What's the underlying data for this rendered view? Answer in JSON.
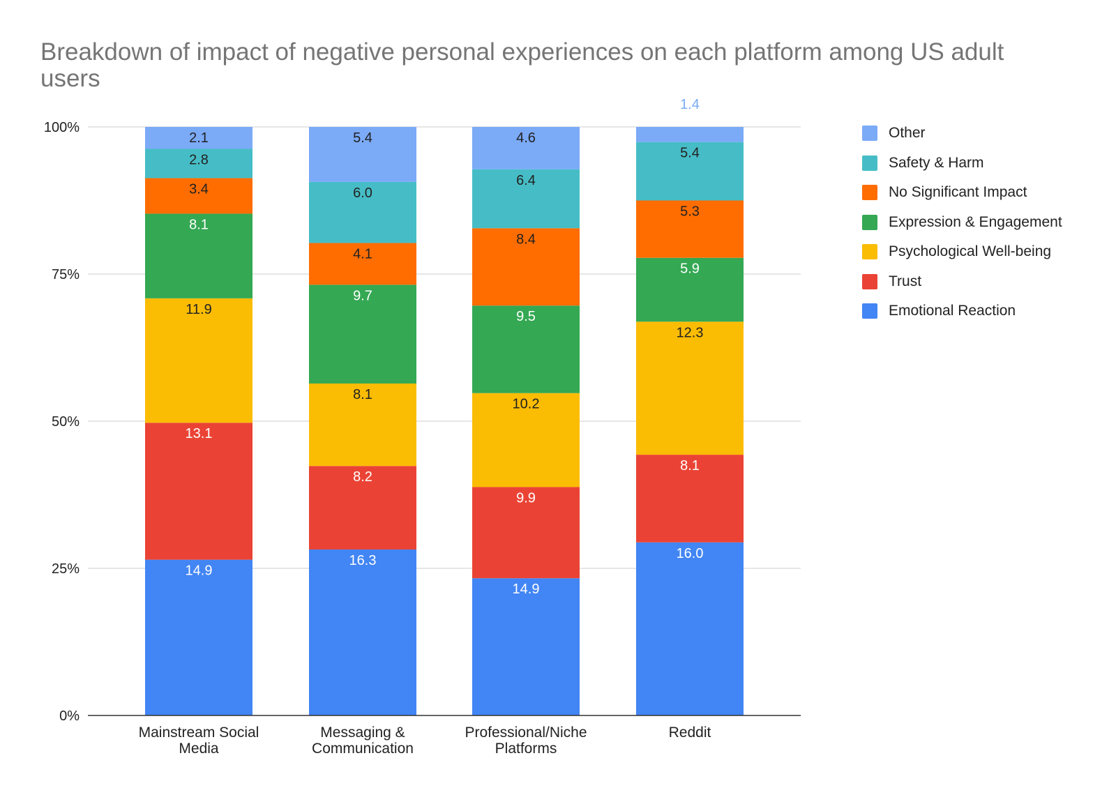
{
  "chart_data": {
    "type": "bar",
    "stacked": true,
    "normalized": true,
    "title": "Breakdown of impact of negative personal experiences on each platform among US adult users",
    "categories": [
      "Mainstream Social Media",
      "Messaging & Communication",
      "Professional/Niche Platforms",
      "Reddit"
    ],
    "y_ticks": [
      "0%",
      "25%",
      "50%",
      "75%",
      "100%"
    ],
    "ylim": [
      0,
      100
    ],
    "grid": true,
    "legend_position": "right",
    "series": [
      {
        "name": "Emotional Reaction",
        "color": "#4285f4",
        "label_color": "#ffffff",
        "values": [
          14.9,
          16.3,
          14.9,
          16.0
        ]
      },
      {
        "name": "Trust",
        "color": "#ea4335",
        "label_color": "#ffffff",
        "values": [
          13.1,
          8.2,
          9.9,
          8.1
        ]
      },
      {
        "name": "Psychological Well-being",
        "color": "#fbbc04",
        "label_color": "#222222",
        "values": [
          11.9,
          8.1,
          10.2,
          12.3
        ]
      },
      {
        "name": "Expression & Engagement",
        "color": "#34a853",
        "label_color": "#ffffff",
        "values": [
          8.1,
          9.7,
          9.5,
          5.9
        ]
      },
      {
        "name": "No Significant Impact",
        "color": "#ff6d01",
        "label_color": "#222222",
        "values": [
          3.4,
          4.1,
          8.4,
          5.3
        ]
      },
      {
        "name": "Safety & Harm",
        "color": "#46bdc6",
        "label_color": "#222222",
        "values": [
          2.8,
          6.0,
          6.4,
          5.4
        ]
      },
      {
        "name": "Other",
        "color": "#7baaf7",
        "label_color": "#222222",
        "values": [
          2.1,
          5.4,
          4.6,
          1.4
        ]
      }
    ],
    "value_labels": [
      [
        "14.9",
        "16.3",
        "14.9",
        "16.0"
      ],
      [
        "13.1",
        "8.2",
        "9.9",
        "8.1"
      ],
      [
        "11.9",
        "8.1",
        "10.2",
        "12.3"
      ],
      [
        "8.1",
        "9.7",
        "9.5",
        "5.9"
      ],
      [
        "3.4",
        "4.1",
        "8.4",
        "5.3"
      ],
      [
        "2.8",
        "6.0",
        "6.4",
        "5.4"
      ],
      [
        "2.1",
        "5.4",
        "4.6",
        "1.4"
      ]
    ]
  }
}
